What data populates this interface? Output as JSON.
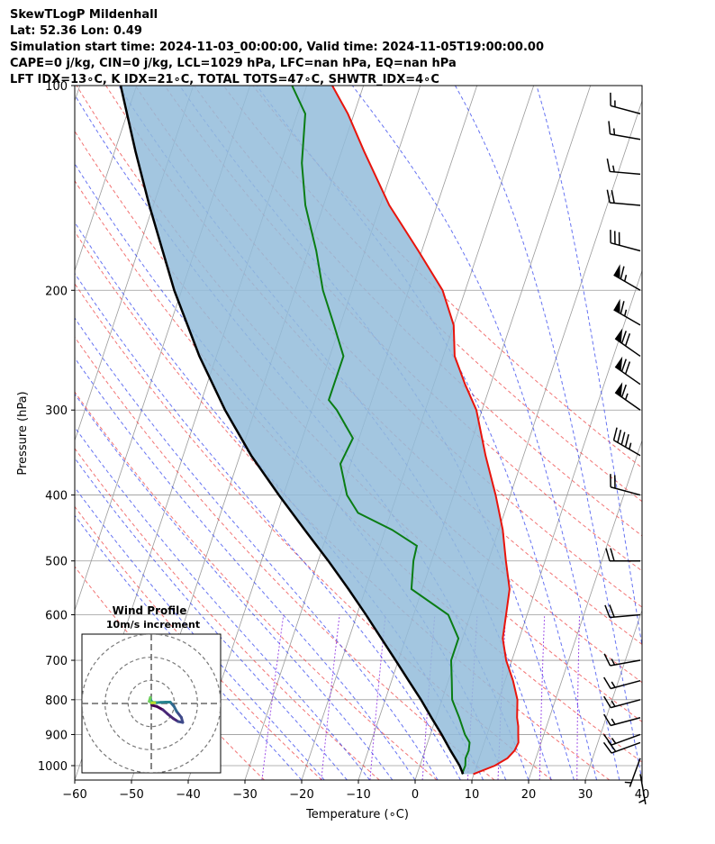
{
  "header": {
    "line1": "SkewTLogP Mildenhall",
    "line2": "Lat: 52.36   Lon: 0.49",
    "line3": "Simulation start time: 2024-11-03_00:00:00, Valid time: 2024-11-05T19:00:00.00",
    "line4": "CAPE=0 j/kg, CIN=0 j/kg, LCL=1029 hPa, LFC=nan hPa, EQ=nan hPa",
    "line5": "LFT IDX=13∘C, K IDX=21∘C, TOTAL TOTS=47∘C, SHWTR_IDX=4∘C"
  },
  "colors": {
    "temperature": "#e8140c",
    "dewpoint": "#0a7d14",
    "parcel": "#000000",
    "cape_fill": "#93bcda",
    "dry_adiabat": "#ee4444",
    "moist_adiabat": "#3344ee",
    "mixing_ratio": "#8a2be2",
    "isotherm": "#9a9a9a"
  },
  "chart_data": {
    "type": "skewt",
    "xlabel": "Temperature (∘C)",
    "ylabel": "Pressure (hPa)",
    "xlim": [
      -60,
      40
    ],
    "ylim": [
      1050,
      100
    ],
    "xticks": [
      -60,
      -50,
      -40,
      -30,
      -20,
      -10,
      0,
      10,
      20,
      30,
      40
    ],
    "xtick_labels": [
      "−60",
      "−50",
      "−40",
      "−30",
      "−20",
      "−10",
      "0",
      "10",
      "20",
      "30",
      "40"
    ],
    "yticks": [
      1000,
      900,
      800,
      700,
      600,
      500,
      400,
      300,
      200,
      100
    ],
    "ytick_labels": [
      "1000",
      "900",
      "800",
      "700",
      "600",
      "500",
      "400",
      "300",
      "200",
      "100"
    ],
    "temperature": [
      [
        1029,
        9.9
      ],
      [
        1000,
        13.2
      ],
      [
        975,
        15.0
      ],
      [
        950,
        15.8
      ],
      [
        925,
        16.0
      ],
      [
        900,
        15.5
      ],
      [
        875,
        15.0
      ],
      [
        850,
        14.3
      ],
      [
        800,
        13.3
      ],
      [
        750,
        11.4
      ],
      [
        700,
        9.0
      ],
      [
        650,
        7.1
      ],
      [
        600,
        6.3
      ],
      [
        550,
        5.4
      ],
      [
        500,
        3.1
      ],
      [
        450,
        0.7
      ],
      [
        400,
        -2.6
      ],
      [
        350,
        -6.7
      ],
      [
        300,
        -11.0
      ],
      [
        275,
        -14.5
      ],
      [
        250,
        -18.0
      ],
      [
        225,
        -20.0
      ],
      [
        200,
        -24.0
      ],
      [
        175,
        -30.6
      ],
      [
        150,
        -38.4
      ],
      [
        125,
        -46.0
      ],
      [
        110,
        -51.1
      ],
      [
        100,
        -55.5
      ]
    ],
    "dewpoint": [
      [
        1029,
        7.9
      ],
      [
        1000,
        8.0
      ],
      [
        975,
        7.6
      ],
      [
        950,
        7.7
      ],
      [
        925,
        7.4
      ],
      [
        900,
        6.1
      ],
      [
        850,
        4.1
      ],
      [
        800,
        1.8
      ],
      [
        750,
        0.6
      ],
      [
        700,
        -0.7
      ],
      [
        650,
        -0.7
      ],
      [
        600,
        -3.9
      ],
      [
        550,
        -11.9
      ],
      [
        500,
        -13.2
      ],
      [
        475,
        -13.5
      ],
      [
        450,
        -18.8
      ],
      [
        425,
        -25.8
      ],
      [
        400,
        -28.8
      ],
      [
        360,
        -31.8
      ],
      [
        330,
        -31.1
      ],
      [
        300,
        -35.6
      ],
      [
        290,
        -37.6
      ],
      [
        250,
        -37.6
      ],
      [
        225,
        -41.1
      ],
      [
        200,
        -45.1
      ],
      [
        175,
        -48.6
      ],
      [
        150,
        -53.2
      ],
      [
        130,
        -56.3
      ],
      [
        110,
        -58.6
      ],
      [
        100,
        -62.6
      ]
    ],
    "parcel": [
      [
        1029,
        8.1
      ],
      [
        1000,
        7.0
      ],
      [
        950,
        4.5
      ],
      [
        900,
        2.0
      ],
      [
        850,
        -0.8
      ],
      [
        800,
        -3.7
      ],
      [
        750,
        -7.0
      ],
      [
        700,
        -10.5
      ],
      [
        650,
        -14.3
      ],
      [
        600,
        -18.4
      ],
      [
        550,
        -23.0
      ],
      [
        500,
        -28.2
      ],
      [
        450,
        -34.2
      ],
      [
        400,
        -40.8
      ],
      [
        350,
        -48.0
      ],
      [
        300,
        -55.3
      ],
      [
        250,
        -63.0
      ],
      [
        200,
        -71.3
      ],
      [
        150,
        -80.7
      ],
      [
        125,
        -86.3
      ],
      [
        100,
        -92.8
      ]
    ],
    "wind_barbs": [
      {
        "p": 1029,
        "speed_kt": 5,
        "dir_deg": 170
      },
      {
        "p": 975,
        "speed_kt": 7,
        "dir_deg": 200
      },
      {
        "p": 925,
        "speed_kt": 20,
        "dir_deg": 250
      },
      {
        "p": 900,
        "speed_kt": 15,
        "dir_deg": 250
      },
      {
        "p": 850,
        "speed_kt": 15,
        "dir_deg": 255
      },
      {
        "p": 800,
        "speed_kt": 15,
        "dir_deg": 255
      },
      {
        "p": 750,
        "speed_kt": 15,
        "dir_deg": 255
      },
      {
        "p": 700,
        "speed_kt": 15,
        "dir_deg": 260
      },
      {
        "p": 600,
        "speed_kt": 20,
        "dir_deg": 265
      },
      {
        "p": 500,
        "speed_kt": 20,
        "dir_deg": 270
      },
      {
        "p": 400,
        "speed_kt": 20,
        "dir_deg": 285
      },
      {
        "p": 350,
        "speed_kt": 45,
        "dir_deg": 300
      },
      {
        "p": 300,
        "speed_kt": 65,
        "dir_deg": 305
      },
      {
        "p": 275,
        "speed_kt": 70,
        "dir_deg": 305
      },
      {
        "p": 250,
        "speed_kt": 70,
        "dir_deg": 305
      },
      {
        "p": 225,
        "speed_kt": 65,
        "dir_deg": 300
      },
      {
        "p": 200,
        "speed_kt": 65,
        "dir_deg": 300
      },
      {
        "p": 175,
        "speed_kt": 30,
        "dir_deg": 285
      },
      {
        "p": 150,
        "speed_kt": 20,
        "dir_deg": 275
      },
      {
        "p": 135,
        "speed_kt": 15,
        "dir_deg": 275
      },
      {
        "p": 120,
        "speed_kt": 15,
        "dir_deg": 280
      },
      {
        "p": 110,
        "speed_kt": 15,
        "dir_deg": 285
      }
    ],
    "hodograph": {
      "title": "Wind Profile",
      "subtitle": "10m/s increment",
      "rings_ms": [
        10,
        20,
        30
      ],
      "limit_ms": 30,
      "u": [
        0.2,
        0.4,
        2.4,
        5.0,
        7.0,
        9.5,
        11.6,
        13.6,
        13.0,
        11.0,
        9.8,
        8.2,
        6.3,
        4.2,
        2.5,
        0.6,
        -0.3,
        -0.4,
        -0.9,
        -0.3,
        0.3,
        0.8,
        1.5
      ],
      "v": [
        -0.5,
        -0.8,
        -1.3,
        -2.7,
        -4.5,
        -6.5,
        -7.8,
        -8.2,
        -6.0,
        -3.5,
        -1.2,
        0.6,
        0.6,
        0.5,
        0.4,
        0.5,
        1.4,
        2.6,
        0.9,
        0.6,
        0.2,
        0.4,
        0.3
      ]
    }
  }
}
